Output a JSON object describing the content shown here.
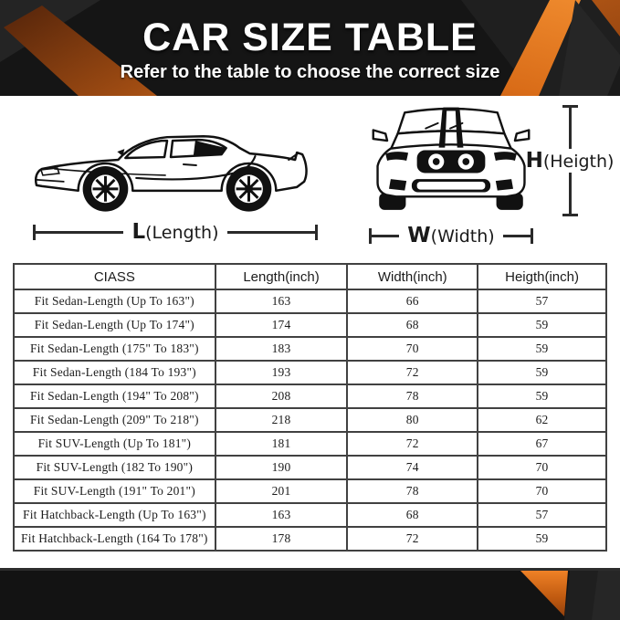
{
  "banner": {
    "title": "CAR SIZE TABLE",
    "subtitle": "Refer to the table to choose the correct size"
  },
  "diagram": {
    "side_car_icon": "car-side-view",
    "front_car_icon": "car-front-view",
    "length": {
      "prefix": "L",
      "rest": "(Length)"
    },
    "width": {
      "prefix": "W",
      "rest": "(Width)"
    },
    "height": {
      "prefix": "H",
      "rest": "(Heigth)"
    }
  },
  "table": {
    "columns": [
      "CIASS",
      "Length(inch)",
      "Width(inch)",
      "Heigth(inch)"
    ],
    "rows": [
      [
        "Fit Sedan-Length (Up To 163\")",
        "163",
        "66",
        "57"
      ],
      [
        "Fit Sedan-Length (Up To 174\")",
        "174",
        "68",
        "59"
      ],
      [
        "Fit Sedan-Length (175\" To 183\")",
        "183",
        "70",
        "59"
      ],
      [
        "Fit Sedan-Length (184 To 193\")",
        "193",
        "72",
        "59"
      ],
      [
        "Fit Sedan-Length (194\" To 208\")",
        "208",
        "78",
        "59"
      ],
      [
        "Fit Sedan-Length (209\" To 218\")",
        "218",
        "80",
        "62"
      ],
      [
        "Fit SUV-Length (Up To 181\")",
        "181",
        "72",
        "67"
      ],
      [
        "Fit SUV-Length (182 To 190\")",
        "190",
        "74",
        "70"
      ],
      [
        "Fit SUV-Length (191\" To 201\")",
        "201",
        "78",
        "70"
      ],
      [
        "Fit Hatchback-Length (Up To 163\")",
        "163",
        "68",
        "57"
      ],
      [
        "Fit Hatchback-Length (164 To 178\")",
        "178",
        "72",
        "59"
      ]
    ]
  },
  "colors": {
    "accent_orange": "#e87a1e",
    "banner_black": "#151515",
    "table_border": "#414141"
  }
}
